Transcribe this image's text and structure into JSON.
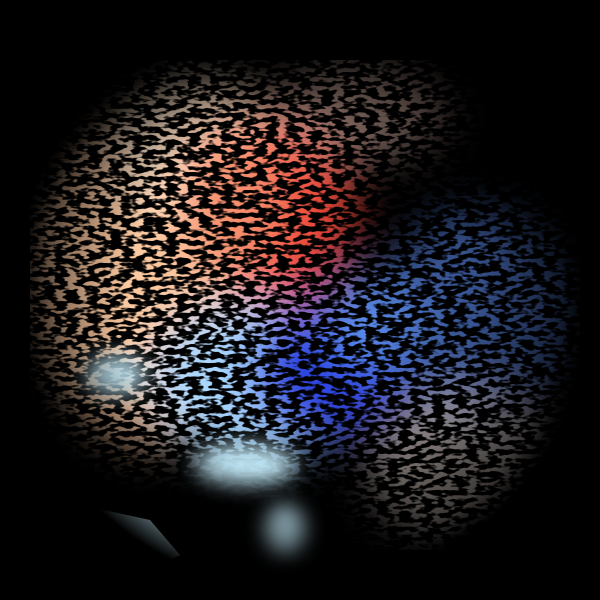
{
  "radar": {
    "background": "#000000",
    "colors": {
      "inbound_strong": "#2b3fe0",
      "inbound_mid": "#5b8ef0",
      "inbound_light": "#a9d8ff",
      "inbound_pale": "#c8f0ff",
      "outbound_strong": "#f04a3a",
      "outbound_mid": "#f6906e",
      "outbound_light": "#fcc9a0",
      "outbound_pale": "#ffe4c8"
    },
    "site_marker_icon": "radar-site-dot-icon",
    "regions": [
      {
        "name": "outbound-core",
        "color_key": "outbound_strong"
      },
      {
        "name": "outbound-west",
        "color_key": "outbound_light"
      },
      {
        "name": "inbound-core",
        "color_key": "inbound_strong"
      },
      {
        "name": "inbound-east",
        "color_key": "inbound_mid"
      },
      {
        "name": "inbound-southwest-pale",
        "color_key": "inbound_pale"
      }
    ]
  }
}
